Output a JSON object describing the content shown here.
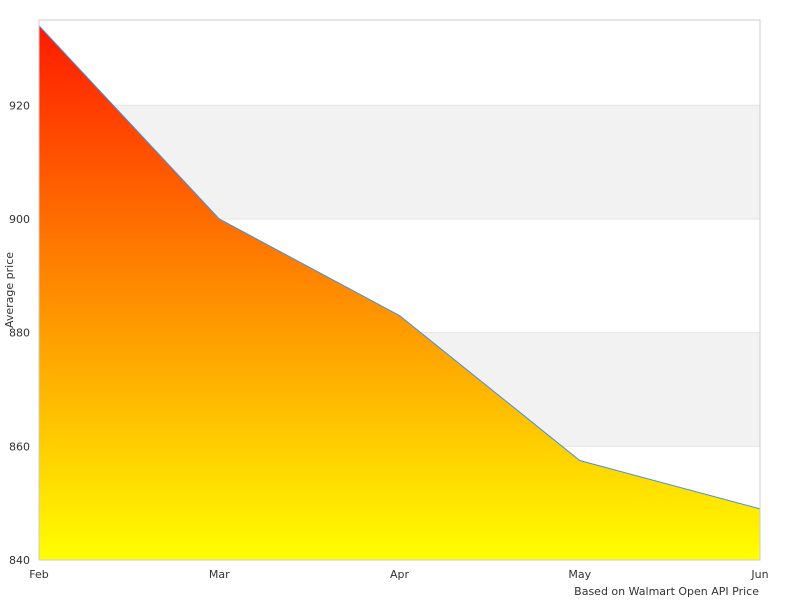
{
  "chart_data": {
    "type": "area",
    "x": [
      "Feb",
      "Mar",
      "Apr",
      "May",
      "Jun"
    ],
    "series": [
      {
        "values": [
          934,
          900,
          883,
          857.5,
          849
        ]
      }
    ],
    "title": "",
    "xlabel": "",
    "ylabel": "Average price",
    "ylim": [
      840,
      935
    ],
    "yticks": [
      840,
      860,
      880,
      900,
      920
    ],
    "grid": "alternating horizontal bands",
    "credit": "Based on Walmart Open API Price",
    "colors": {
      "fill_top": "#ff1a00",
      "fill_mid": "#ff8c00",
      "fill_bottom": "#ffff00",
      "line": "#4a90d9",
      "band": "#f2f2f2",
      "axis": "#cccccc"
    }
  }
}
